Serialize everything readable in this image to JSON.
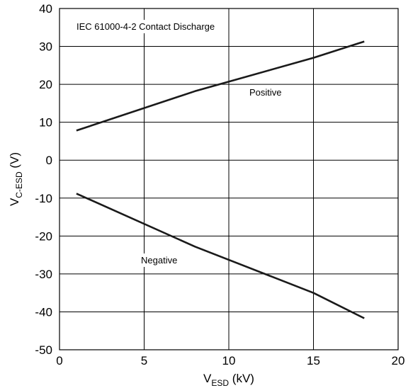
{
  "chart_data": {
    "type": "line",
    "title": "",
    "annotation": "IEC 61000-4-2 Contact Discharge",
    "xlabel": {
      "main": "V",
      "sub": "ESD",
      "unit": " (kV)"
    },
    "ylabel": {
      "main": "V",
      "sub": "C-ESD",
      "unit": " (V)"
    },
    "xlim": [
      0,
      20
    ],
    "ylim": [
      -50,
      40
    ],
    "xticks": [
      0,
      5,
      10,
      15,
      20
    ],
    "yticks": [
      -50,
      -40,
      -30,
      -20,
      -10,
      0,
      10,
      20,
      30,
      40
    ],
    "grid": true,
    "line_color": "#1a1a1a",
    "series": [
      {
        "name": "Positive",
        "x": [
          1,
          8,
          15,
          18
        ],
        "y": [
          7.8,
          18.2,
          27.0,
          31.3
        ]
      },
      {
        "name": "Negative",
        "x": [
          1,
          8,
          15,
          18
        ],
        "y": [
          -8.8,
          -22.8,
          -35.0,
          -41.7
        ]
      }
    ]
  }
}
